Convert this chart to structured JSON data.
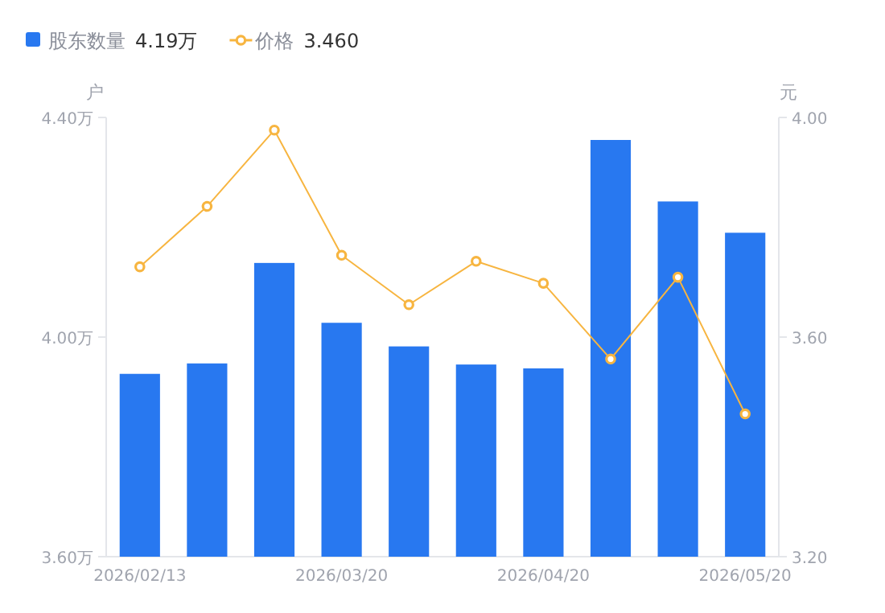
{
  "chart_data": {
    "type": "bar",
    "categories": [
      "2026/02/13",
      null,
      null,
      "2026/03/20",
      null,
      null,
      "2026/04/20",
      null,
      null,
      "2026/05/20"
    ],
    "series": [
      {
        "name": "股东数量",
        "color": "#2878f0",
        "values": [
          3.933,
          3.952,
          4.135,
          4.026,
          3.983,
          3.95,
          3.943,
          4.359,
          4.247,
          4.19
        ]
      },
      {
        "name": "价格",
        "type": "line",
        "axis": "y2",
        "color": "#f7b540",
        "marker": "circle",
        "values": [
          3.728,
          3.838,
          3.977,
          3.749,
          3.659,
          3.738,
          3.698,
          3.56,
          3.709,
          3.46
        ]
      }
    ],
    "ylabel": "户",
    "y2label": "元",
    "ylim": [
      3.6,
      4.4
    ],
    "yticks": [
      {
        "value": 3.6,
        "label": "3.60万"
      },
      {
        "value": 4.0,
        "label": "4.00万"
      },
      {
        "value": 4.4,
        "label": "4.40万"
      }
    ],
    "y2lim": [
      3.2,
      4.0
    ],
    "y2ticks": [
      {
        "value": 3.2,
        "label": "3.20"
      },
      {
        "value": 3.6,
        "label": "3.60"
      },
      {
        "value": 4.0,
        "label": "4.00"
      }
    ],
    "legend": "top left",
    "annotations": [
      "4.19万",
      "3.460"
    ]
  }
}
